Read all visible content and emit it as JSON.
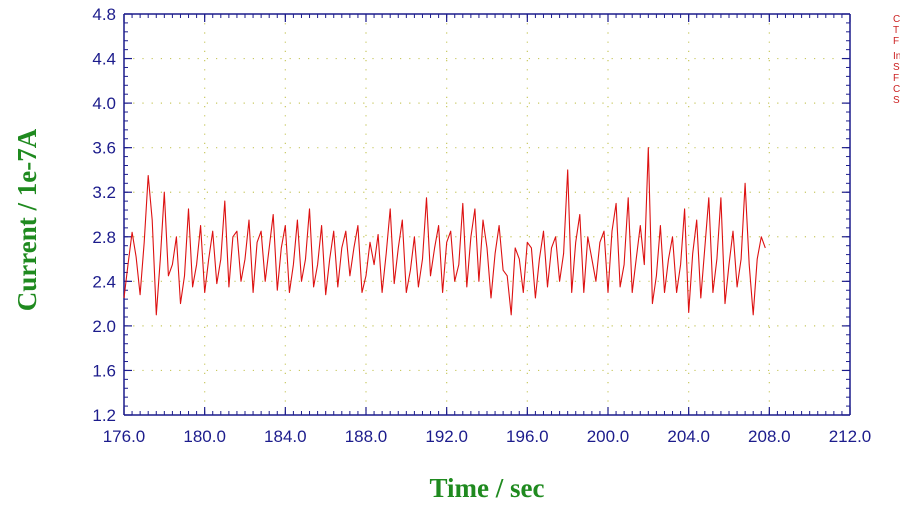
{
  "chart_data": {
    "type": "line",
    "title": "",
    "xlabel": "Time / sec",
    "ylabel": "Current / 1e-7A",
    "xlim": [
      176.0,
      212.0
    ],
    "ylim": [
      1.2,
      4.8
    ],
    "x_ticks": [
      "176.0",
      "180.0",
      "184.0",
      "188.0",
      "192.0",
      "196.0",
      "200.0",
      "204.0",
      "208.0",
      "212.0"
    ],
    "y_ticks": [
      "1.2",
      "1.6",
      "2.0",
      "2.4",
      "2.8",
      "3.2",
      "3.6",
      "4.0",
      "4.4",
      "4.8"
    ],
    "grid": true,
    "series": [
      {
        "color": "#dd1111",
        "x": [
          176.0,
          176.2,
          176.4,
          176.6,
          176.8,
          177.0,
          177.2,
          177.4,
          177.6,
          177.8,
          178.0,
          178.2,
          178.4,
          178.6,
          178.8,
          179.0,
          179.2,
          179.4,
          179.6,
          179.8,
          180.0,
          180.2,
          180.4,
          180.6,
          180.8,
          181.0,
          181.2,
          181.4,
          181.6,
          181.8,
          182.0,
          182.2,
          182.4,
          182.6,
          182.8,
          183.0,
          183.2,
          183.4,
          183.6,
          183.8,
          184.0,
          184.2,
          184.4,
          184.6,
          184.8,
          185.0,
          185.2,
          185.4,
          185.6,
          185.8,
          186.0,
          186.2,
          186.4,
          186.6,
          186.8,
          187.0,
          187.2,
          187.4,
          187.6,
          187.8,
          188.0,
          188.2,
          188.4,
          188.6,
          188.8,
          189.0,
          189.2,
          189.4,
          189.6,
          189.8,
          190.0,
          190.2,
          190.4,
          190.6,
          190.8,
          191.0,
          191.2,
          191.4,
          191.6,
          191.8,
          192.0,
          192.2,
          192.4,
          192.6,
          192.8,
          193.0,
          193.2,
          193.4,
          193.6,
          193.8,
          194.0,
          194.2,
          194.4,
          194.6,
          194.8,
          195.0,
          195.2,
          195.4,
          195.6,
          195.8,
          196.0,
          196.2,
          196.4,
          196.6,
          196.8,
          197.0,
          197.2,
          197.4,
          197.6,
          197.8,
          198.0,
          198.2,
          198.4,
          198.6,
          198.8,
          199.0,
          199.2,
          199.4,
          199.6,
          199.8,
          200.0,
          200.2,
          200.4,
          200.6,
          200.8,
          201.0,
          201.2,
          201.4,
          201.6,
          201.8,
          202.0,
          202.2,
          202.4,
          202.6,
          202.8,
          203.0,
          203.2,
          203.4,
          203.6,
          203.8,
          204.0,
          204.2,
          204.4,
          204.6,
          204.8,
          205.0,
          205.2,
          205.4,
          205.6,
          205.8,
          206.0,
          206.2,
          206.4,
          206.6,
          206.8,
          207.0,
          207.2,
          207.4,
          207.6,
          207.8
        ],
        "y": [
          2.25,
          2.55,
          2.84,
          2.62,
          2.28,
          2.75,
          3.35,
          2.95,
          2.1,
          2.6,
          3.2,
          2.45,
          2.55,
          2.8,
          2.2,
          2.45,
          3.05,
          2.35,
          2.55,
          2.9,
          2.3,
          2.6,
          2.85,
          2.38,
          2.6,
          3.12,
          2.35,
          2.8,
          2.85,
          2.4,
          2.6,
          2.95,
          2.3,
          2.75,
          2.85,
          2.4,
          2.7,
          3.0,
          2.32,
          2.7,
          2.9,
          2.3,
          2.55,
          2.95,
          2.4,
          2.6,
          3.05,
          2.35,
          2.55,
          2.9,
          2.28,
          2.6,
          2.85,
          2.35,
          2.7,
          2.85,
          2.45,
          2.7,
          2.9,
          2.3,
          2.45,
          2.75,
          2.55,
          2.82,
          2.3,
          2.65,
          3.05,
          2.38,
          2.7,
          2.95,
          2.3,
          2.5,
          2.8,
          2.35,
          2.6,
          3.15,
          2.45,
          2.7,
          2.9,
          2.3,
          2.75,
          2.85,
          2.4,
          2.55,
          3.1,
          2.35,
          2.8,
          3.05,
          2.4,
          2.95,
          2.7,
          2.25,
          2.65,
          2.9,
          2.5,
          2.45,
          2.1,
          2.7,
          2.6,
          2.3,
          2.75,
          2.7,
          2.25,
          2.6,
          2.85,
          2.35,
          2.7,
          2.8,
          2.4,
          2.65,
          3.4,
          2.3,
          2.75,
          3.0,
          2.3,
          2.8,
          2.6,
          2.4,
          2.75,
          2.85,
          2.3,
          2.85,
          3.1,
          2.35,
          2.55,
          3.15,
          2.3,
          2.6,
          2.9,
          2.55,
          3.6,
          2.2,
          2.45,
          2.9,
          2.3,
          2.6,
          2.8,
          2.3,
          2.55,
          3.05,
          2.12,
          2.65,
          2.95,
          2.25,
          2.7,
          3.15,
          2.3,
          2.6,
          3.15,
          2.2,
          2.55,
          2.85,
          2.35,
          2.6,
          3.28,
          2.55,
          2.1,
          2.6,
          2.8,
          2.7
        ]
      }
    ]
  },
  "side_annotations": [
    "C",
    "T",
    "F",
    "In",
    "S",
    "F",
    "C",
    "S"
  ]
}
